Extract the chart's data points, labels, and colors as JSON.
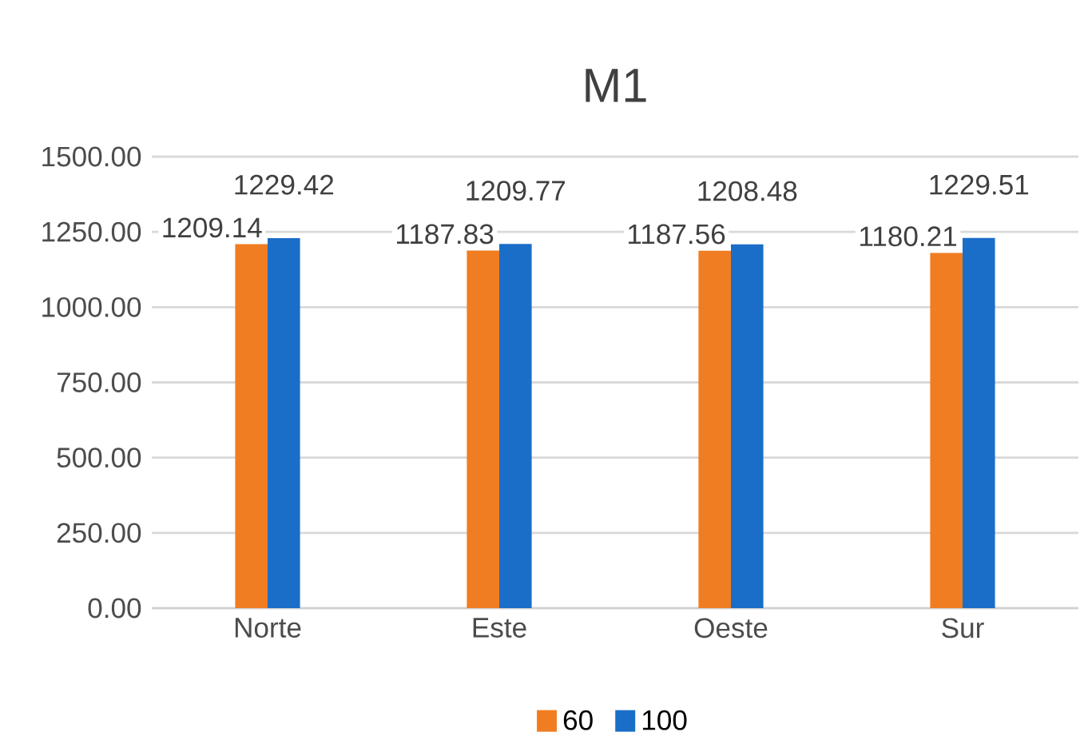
{
  "chart_data": {
    "type": "bar",
    "title": "M1",
    "categories": [
      "Norte",
      "Este",
      "Oeste",
      "Sur"
    ],
    "series": [
      {
        "name": "60",
        "color": "#f07d22",
        "values": [
          1209.14,
          1187.83,
          1187.56,
          1180.21
        ]
      },
      {
        "name": "100",
        "color": "#1b6ec8",
        "values": [
          1229.42,
          1209.77,
          1208.48,
          1229.51
        ]
      }
    ],
    "ylim": [
      0,
      1500
    ],
    "yticks": [
      {
        "value": 0,
        "label": "0.00"
      },
      {
        "value": 250,
        "label": "250.00"
      },
      {
        "value": 500,
        "label": "500.00"
      },
      {
        "value": 750,
        "label": "750.00"
      },
      {
        "value": 1000,
        "label": "1000.00"
      },
      {
        "value": 1250,
        "label": "1250.00"
      },
      {
        "value": 1500,
        "label": "1500.00"
      }
    ],
    "grid": "y",
    "legend": "bottom",
    "data_labels": true
  }
}
